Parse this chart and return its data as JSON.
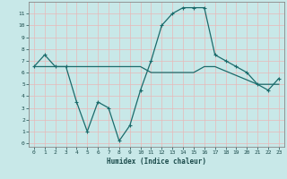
{
  "xlabel": "Humidex (Indice chaleur)",
  "xlim": [
    -0.5,
    23.5
  ],
  "ylim": [
    -0.3,
    12
  ],
  "yticks": [
    0,
    1,
    2,
    3,
    4,
    5,
    6,
    7,
    8,
    9,
    10,
    11
  ],
  "xticks": [
    0,
    1,
    2,
    3,
    4,
    5,
    6,
    7,
    8,
    9,
    10,
    11,
    12,
    13,
    14,
    15,
    16,
    17,
    18,
    19,
    20,
    21,
    22,
    23
  ],
  "line1_x": [
    0,
    1,
    2,
    3,
    4,
    5,
    6,
    7,
    8,
    9,
    10,
    11,
    12,
    13,
    14,
    15,
    16,
    17,
    18,
    19,
    20,
    21,
    22,
    23
  ],
  "line1_y": [
    6.5,
    7.5,
    6.5,
    6.5,
    3.5,
    1,
    3.5,
    3,
    0.2,
    1.5,
    4.5,
    7,
    10,
    11,
    11.5,
    11.5,
    11.5,
    7.5,
    7,
    6.5,
    6,
    5,
    4.5,
    5.5
  ],
  "line2_x": [
    0,
    9,
    10,
    11,
    15,
    16,
    17,
    21,
    22,
    23
  ],
  "line2_y": [
    6.5,
    6.5,
    6.5,
    6.0,
    6.0,
    6.5,
    6.5,
    5.0,
    5.0,
    5.0
  ],
  "line_color": "#1a6b6b",
  "bg_color": "#c8e8e8",
  "grid_color": "#e8f8f8",
  "figsize": [
    3.2,
    2.0
  ],
  "dpi": 100
}
